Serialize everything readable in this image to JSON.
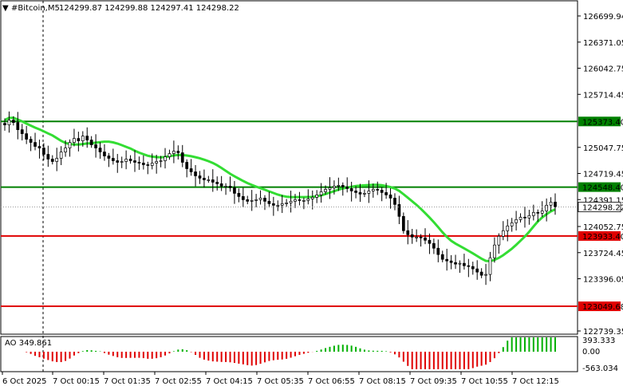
{
  "header": {
    "arrow": "▼",
    "symbol": "#Bitcoin,M5",
    "ohlc": "124299.87 124299.88 124297.41 124298.22"
  },
  "price_axis": {
    "ticks": [
      "126699.94",
      "126371.05",
      "126042.75",
      "125714.45",
      "125047.75",
      "124719.45",
      "124391.15",
      "124052.75",
      "123724.45",
      "123396.05",
      "122739.35"
    ]
  },
  "levels": [
    {
      "label": "125373.40",
      "price": 125373.4,
      "color": "#008000",
      "label_bg": "#008000"
    },
    {
      "label": "124548.40",
      "price": 124548.4,
      "color": "#008000",
      "label_bg": "#008000"
    },
    {
      "label": "123933.40",
      "price": 123933.4,
      "color": "#e00000",
      "label_bg": "#e00000"
    },
    {
      "label": "123049.68",
      "price": 123049.68,
      "color": "#e00000",
      "label_bg": "#e00000"
    }
  ],
  "current_price": {
    "label": "124298.22",
    "price": 124298.22
  },
  "ao": {
    "label": "AO 349.861",
    "ticks": [
      "393.333",
      "0.00",
      "-563.034"
    ]
  },
  "time_axis": {
    "labels": [
      "6 Oct 2025",
      "7 Oct 00:15",
      "7 Oct 01:35",
      "7 Oct 02:55",
      "7 Oct 04:15",
      "7 Oct 05:35",
      "7 Oct 06:55",
      "7 Oct 08:15",
      "7 Oct 09:35",
      "7 Oct 10:55",
      "7 Oct 12:15"
    ]
  },
  "colors": {
    "ma": "#33dd33",
    "candle": "#000000",
    "ao_up": "#00b000",
    "ao_down": "#e00000"
  },
  "chart_data": {
    "type": "candlestick",
    "title": "#Bitcoin,M5",
    "price_range": [
      122739.35,
      126699.94
    ],
    "closes": [
      125330,
      125390,
      125360,
      125270,
      125220,
      125150,
      125110,
      125060,
      125040,
      124960,
      124900,
      124870,
      124910,
      124990,
      125040,
      125110,
      125160,
      125130,
      125190,
      125140,
      125080,
      125040,
      124990,
      124940,
      124910,
      124880,
      124860,
      124870,
      124900,
      124880,
      124860,
      124850,
      124830,
      124820,
      124850,
      124870,
      124880,
      124930,
      124970,
      125000,
      124980,
      124860,
      124780,
      124740,
      124690,
      124660,
      124640,
      124640,
      124610,
      124590,
      124560,
      124560,
      124540,
      124470,
      124430,
      124390,
      124370,
      124380,
      124390,
      124410,
      124370,
      124340,
      124320,
      124320,
      124340,
      124350,
      124370,
      124390,
      124380,
      124380,
      124400,
      124420,
      124450,
      124490,
      124520,
      124540,
      124560,
      124570,
      124550,
      124530,
      124500,
      124480,
      124460,
      124470,
      124500,
      124520,
      124510,
      124480,
      124450,
      124410,
      124330,
      124180,
      124000,
      123950,
      123920,
      123920,
      123910,
      123880,
      123840,
      123780,
      123700,
      123640,
      123620,
      123600,
      123580,
      123590,
      123560,
      123550,
      123520,
      123480,
      123440,
      123450,
      123660,
      123820,
      123930,
      124000,
      124060,
      124100,
      124140,
      124170,
      124160,
      124190,
      124230,
      124220,
      124250,
      124320,
      124360,
      124298
    ]
  }
}
